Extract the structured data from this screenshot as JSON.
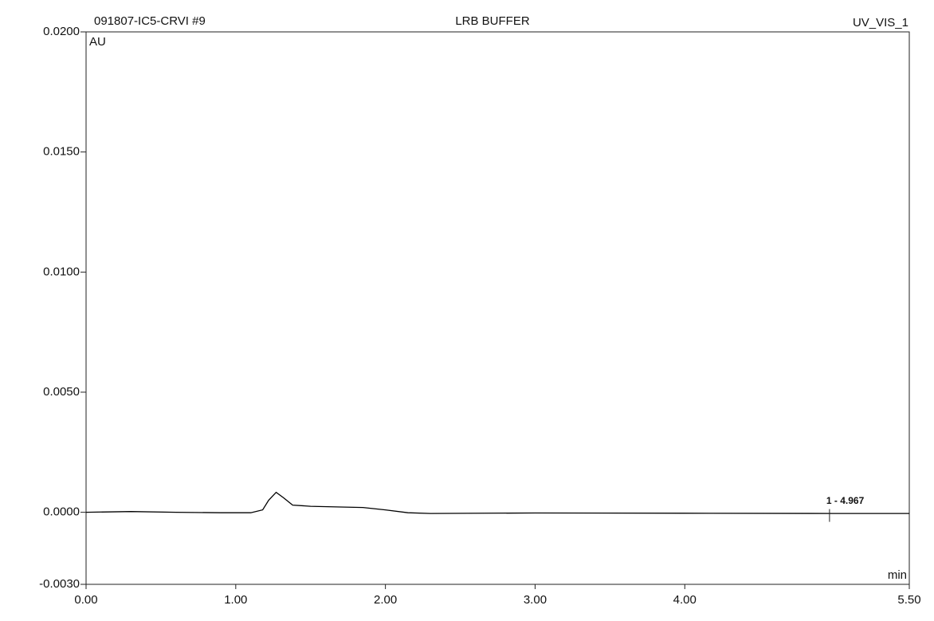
{
  "chart_data": {
    "type": "line",
    "title": "LRB BUFFER",
    "sample": "091807-IC5-CRVI #9",
    "channel": "UV_VIS_1",
    "ylabel": "AU",
    "xlabel": "min",
    "color": "#000000",
    "x": [
      0,
      0.3,
      0.6,
      0.9,
      1.1,
      1.18,
      1.22,
      1.27,
      1.32,
      1.38,
      1.5,
      1.7,
      1.85,
      2.0,
      2.15,
      2.3,
      3.0,
      4.0,
      5.0,
      5.5
    ],
    "values": [
      0,
      3e-05,
      0,
      -2e-05,
      -2e-05,
      0.0001,
      0.0005,
      0.00083,
      0.0006,
      0.0003,
      0.00025,
      0.00022,
      0.0002,
      0.0001,
      -2e-05,
      -5e-05,
      -3e-05,
      -4e-05,
      -5e-05,
      -5e-05
    ],
    "xlim": [
      0,
      5.5
    ],
    "ylim": [
      -0.003,
      0.02
    ],
    "xticks": [
      {
        "value": 0,
        "label": "0.00"
      },
      {
        "value": 1,
        "label": "1.00"
      },
      {
        "value": 2,
        "label": "2.00"
      },
      {
        "value": 3,
        "label": "3.00"
      },
      {
        "value": 4,
        "label": "4.00"
      },
      {
        "value": 5.5,
        "label": "5.50"
      }
    ],
    "yticks": [
      {
        "value": 0.02,
        "label": "0.0200"
      },
      {
        "value": 0.015,
        "label": "0.0150"
      },
      {
        "value": 0.01,
        "label": "0.0100"
      },
      {
        "value": 0.005,
        "label": "0.0050"
      },
      {
        "value": 0,
        "label": "0.0000"
      },
      {
        "value": -0.003,
        "label": "-0.0030"
      }
    ],
    "peak": {
      "label": "1 - 4.967",
      "x": 4.967
    }
  }
}
